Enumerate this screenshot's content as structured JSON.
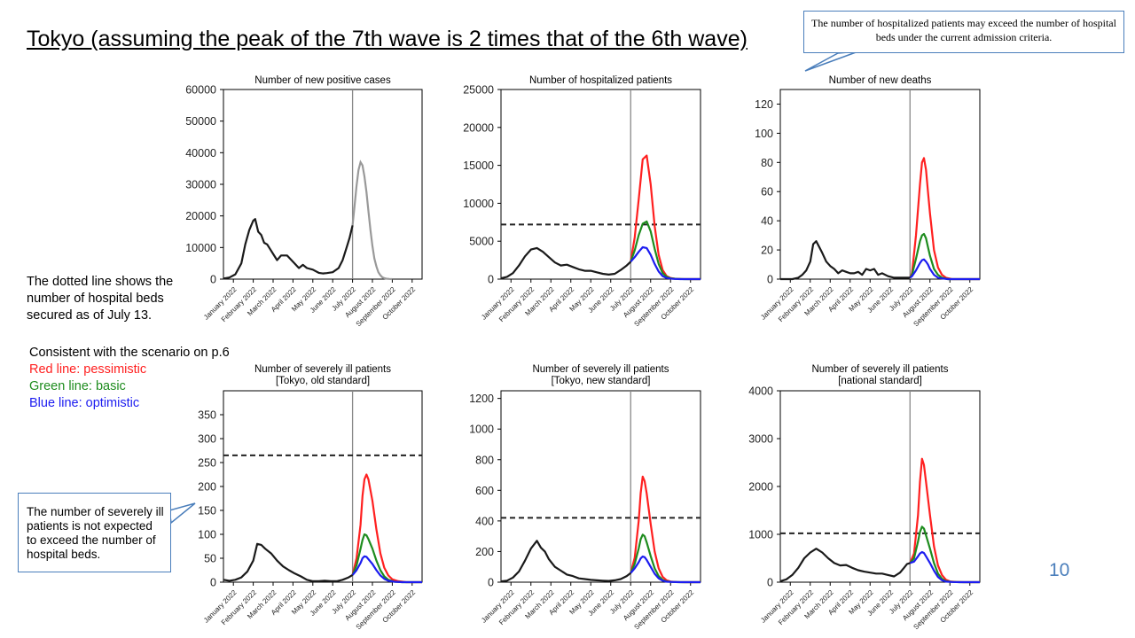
{
  "slide": {
    "title": "Tokyo (assuming the peak of the 7th wave is 2 times that of the 6th wave)",
    "callout_top": "The number of hospitalized patients may exceed the number of hospital beds under the current admission criteria.",
    "dotted_note": "The dotted line shows the number of hospital beds secured as of July 13.",
    "legend": {
      "heading": "Consistent with the scenario on p.6",
      "red": "Red line: pessimistic",
      "green": "Green line: basic",
      "blue": "Blue line: optimistic"
    },
    "callout_left": "The number of severely ill patients is not expected to exceed the number of hospital beds.",
    "page_number": "10"
  },
  "colors": {
    "observed": "#1a1a1a",
    "projection": "#999999",
    "pessimistic": "#ff2020",
    "basic": "#1e8c1e",
    "optimistic": "#1c1cf0",
    "beds": "#222222",
    "divider": "#888888"
  },
  "months": [
    "January 2022",
    "February 2022",
    "March 2022",
    "April 2022",
    "May 2022",
    "June 2022",
    "July 2022",
    "August 2022",
    "September 2022",
    "October 2022"
  ],
  "chart_data": [
    {
      "type": "line",
      "title": "Number of new positive cases",
      "ylim": [
        0,
        60000
      ],
      "yticks": [
        0,
        10000,
        20000,
        30000,
        40000,
        50000,
        60000
      ],
      "xlim": [
        0,
        10
      ],
      "divider_x": 6.5,
      "observed": {
        "x": [
          0,
          0.3,
          0.6,
          0.9,
          1.1,
          1.3,
          1.5,
          1.6,
          1.75,
          1.9,
          2.05,
          2.2,
          2.35,
          2.5,
          2.7,
          2.9,
          3.0,
          3.2,
          3.5,
          3.8,
          4.0,
          4.2,
          4.5,
          4.8,
          5.0,
          5.2,
          5.5,
          5.8,
          6.0,
          6.2,
          6.35,
          6.5
        ],
        "y": [
          200,
          500,
          1500,
          5000,
          11000,
          15500,
          18500,
          19000,
          15000,
          14000,
          11500,
          11000,
          9500,
          8000,
          6000,
          7500,
          7500,
          7500,
          5500,
          3500,
          4500,
          3500,
          3000,
          2000,
          1800,
          1900,
          2200,
          3500,
          6000,
          10000,
          13000,
          17000
        ]
      },
      "projection": {
        "x": [
          6.5,
          6.6,
          6.7,
          6.8,
          6.9,
          7.0,
          7.1,
          7.2,
          7.3,
          7.4,
          7.5,
          7.6,
          7.7,
          7.8,
          7.9,
          8.0,
          8.1,
          8.2,
          8.35,
          8.5
        ],
        "y": [
          17000,
          23000,
          29500,
          34500,
          37000,
          36000,
          32500,
          27500,
          21500,
          15500,
          10500,
          6500,
          4000,
          2200,
          1200,
          600,
          300,
          150,
          50,
          0
        ]
      },
      "series": []
    },
    {
      "type": "line",
      "title": "Number of hospitalized patients",
      "ylim": [
        0,
        25000
      ],
      "yticks": [
        0,
        5000,
        10000,
        15000,
        20000,
        25000
      ],
      "xlim": [
        0,
        10
      ],
      "divider_x": 6.5,
      "beds": 7200,
      "observed": {
        "x": [
          0,
          0.3,
          0.6,
          0.9,
          1.2,
          1.5,
          1.8,
          2.1,
          2.4,
          2.7,
          3.0,
          3.3,
          3.6,
          3.9,
          4.2,
          4.5,
          4.8,
          5.1,
          5.4,
          5.7,
          6.0,
          6.3,
          6.5
        ],
        "y": [
          100,
          300,
          800,
          1800,
          3000,
          3900,
          4100,
          3600,
          2900,
          2200,
          1800,
          1900,
          1600,
          1300,
          1100,
          1100,
          900,
          700,
          600,
          700,
          1200,
          1800,
          2300
        ]
      },
      "series": [
        {
          "name": "pessimistic",
          "x": [
            6.5,
            6.7,
            6.9,
            7.1,
            7.3,
            7.5,
            7.7,
            7.9,
            8.1,
            8.3,
            8.5,
            8.7,
            9.0,
            9.5,
            10.0
          ],
          "y": [
            2300,
            5500,
            10500,
            15800,
            16300,
            12500,
            7000,
            3200,
            1200,
            400,
            150,
            60,
            20,
            0,
            0
          ]
        },
        {
          "name": "basic",
          "x": [
            6.5,
            6.7,
            6.9,
            7.1,
            7.3,
            7.5,
            7.7,
            7.9,
            8.1,
            8.3,
            8.5,
            8.8,
            9.2,
            10.0
          ],
          "y": [
            2300,
            3800,
            5800,
            7300,
            7600,
            6300,
            4000,
            2000,
            800,
            300,
            100,
            30,
            0,
            0
          ]
        },
        {
          "name": "optimistic",
          "x": [
            6.5,
            6.7,
            6.9,
            7.1,
            7.3,
            7.5,
            7.7,
            7.9,
            8.1,
            8.3,
            8.6,
            9.0,
            10.0
          ],
          "y": [
            2300,
            2900,
            3600,
            4200,
            4100,
            3200,
            2000,
            1000,
            400,
            150,
            40,
            0,
            0
          ]
        }
      ]
    },
    {
      "type": "line",
      "title": "Number of new deaths",
      "ylim": [
        0,
        130
      ],
      "yticks": [
        0,
        20,
        40,
        60,
        80,
        100,
        120
      ],
      "xlim": [
        0,
        10
      ],
      "divider_x": 6.5,
      "observed": {
        "x": [
          0,
          0.3,
          0.6,
          0.9,
          1.1,
          1.3,
          1.5,
          1.65,
          1.8,
          1.95,
          2.1,
          2.3,
          2.5,
          2.7,
          2.9,
          3.1,
          3.3,
          3.5,
          3.7,
          3.9,
          4.1,
          4.3,
          4.5,
          4.7,
          4.9,
          5.1,
          5.4,
          5.7,
          6.0,
          6.3,
          6.5
        ],
        "y": [
          0,
          0,
          0,
          1,
          3,
          6,
          12,
          24,
          26,
          22,
          18,
          12,
          9,
          7,
          4,
          6,
          5,
          4,
          4,
          5,
          3,
          7,
          6,
          7,
          3,
          4,
          2,
          1,
          1,
          1,
          1
        ]
      },
      "series": [
        {
          "name": "pessimistic",
          "x": [
            6.5,
            6.6,
            6.8,
            7.0,
            7.1,
            7.2,
            7.3,
            7.4,
            7.5,
            7.7,
            7.9,
            8.1,
            8.3,
            8.6,
            9.0,
            10.0
          ],
          "y": [
            1,
            4,
            30,
            65,
            80,
            83,
            75,
            60,
            45,
            20,
            8,
            3,
            1,
            0,
            0,
            0
          ]
        },
        {
          "name": "basic",
          "x": [
            6.5,
            6.6,
            6.8,
            7.0,
            7.1,
            7.2,
            7.3,
            7.4,
            7.5,
            7.7,
            7.9,
            8.1,
            8.4,
            9.0,
            10.0
          ],
          "y": [
            1,
            3,
            14,
            26,
            30,
            31,
            28,
            22,
            16,
            7,
            3,
            1,
            0,
            0,
            0
          ]
        },
        {
          "name": "optimistic",
          "x": [
            6.5,
            6.6,
            6.8,
            7.0,
            7.1,
            7.2,
            7.3,
            7.4,
            7.5,
            7.7,
            7.9,
            8.1,
            8.4,
            9.0,
            10.0
          ],
          "y": [
            1,
            2,
            6,
            11,
            13,
            13.5,
            12,
            10,
            7,
            3,
            1,
            0.5,
            0,
            0,
            0
          ]
        }
      ]
    },
    {
      "type": "line",
      "title": "Number of severely ill patients",
      "subtitle": "[Tokyo,  old standard]",
      "ylim": [
        0,
        400
      ],
      "yticks": [
        0,
        50,
        100,
        150,
        200,
        250,
        300,
        350
      ],
      "xlim": [
        0,
        10
      ],
      "divider_x": 6.5,
      "beds": 265,
      "observed": {
        "x": [
          0,
          0.3,
          0.6,
          0.9,
          1.2,
          1.5,
          1.7,
          1.9,
          2.1,
          2.4,
          2.7,
          3.0,
          3.3,
          3.6,
          3.9,
          4.2,
          4.5,
          4.8,
          5.1,
          5.4,
          5.7,
          6.0,
          6.3,
          6.5
        ],
        "y": [
          5,
          3,
          5,
          10,
          22,
          45,
          80,
          78,
          70,
          60,
          45,
          33,
          25,
          18,
          12,
          5,
          2,
          2,
          3,
          2,
          2,
          5,
          10,
          15
        ]
      },
      "series": [
        {
          "name": "pessimistic",
          "x": [
            6.5,
            6.7,
            6.9,
            7.0,
            7.1,
            7.2,
            7.3,
            7.5,
            7.7,
            7.9,
            8.1,
            8.3,
            8.5,
            8.8,
            9.2,
            10.0
          ],
          "y": [
            15,
            50,
            120,
            180,
            215,
            225,
            215,
            170,
            110,
            60,
            30,
            14,
            6,
            2,
            0,
            0
          ]
        },
        {
          "name": "basic",
          "x": [
            6.5,
            6.7,
            6.9,
            7.0,
            7.1,
            7.2,
            7.3,
            7.5,
            7.7,
            7.9,
            8.1,
            8.3,
            8.6,
            9.0,
            10.0
          ],
          "y": [
            15,
            35,
            70,
            88,
            100,
            98,
            90,
            70,
            45,
            25,
            12,
            5,
            1,
            0,
            0
          ]
        },
        {
          "name": "optimistic",
          "x": [
            6.5,
            6.7,
            6.9,
            7.0,
            7.1,
            7.2,
            7.3,
            7.5,
            7.7,
            7.9,
            8.1,
            8.3,
            8.6,
            9.0,
            10.0
          ],
          "y": [
            15,
            25,
            40,
            50,
            54,
            53,
            48,
            38,
            25,
            14,
            7,
            3,
            1,
            0,
            0
          ]
        }
      ]
    },
    {
      "type": "line",
      "title": "Number of severely ill patients",
      "subtitle": "[Tokyo,  new standard]",
      "ylim": [
        0,
        1250
      ],
      "yticks": [
        0,
        200,
        400,
        600,
        800,
        1000,
        1200
      ],
      "xlim": [
        0,
        10
      ],
      "divider_x": 6.5,
      "beds": 420,
      "observed": {
        "x": [
          0,
          0.3,
          0.6,
          0.9,
          1.2,
          1.5,
          1.8,
          2.0,
          2.2,
          2.4,
          2.7,
          3.0,
          3.3,
          3.6,
          3.9,
          4.2,
          4.5,
          4.8,
          5.1,
          5.4,
          5.7,
          6.0,
          6.3,
          6.5
        ],
        "y": [
          5,
          10,
          30,
          70,
          140,
          220,
          270,
          225,
          200,
          150,
          100,
          75,
          50,
          40,
          25,
          20,
          15,
          12,
          10,
          8,
          12,
          20,
          40,
          60
        ]
      },
      "series": [
        {
          "name": "pessimistic",
          "x": [
            6.5,
            6.7,
            6.9,
            7.0,
            7.1,
            7.2,
            7.3,
            7.5,
            7.7,
            7.9,
            8.1,
            8.3,
            8.5,
            8.8,
            9.2,
            10.0
          ],
          "y": [
            60,
            160,
            400,
            580,
            690,
            660,
            580,
            380,
            200,
            90,
            35,
            12,
            4,
            1,
            0,
            0
          ]
        },
        {
          "name": "basic",
          "x": [
            6.5,
            6.7,
            6.9,
            7.0,
            7.1,
            7.2,
            7.3,
            7.5,
            7.7,
            7.9,
            8.1,
            8.3,
            8.6,
            9.0,
            10.0
          ],
          "y": [
            60,
            120,
            220,
            280,
            310,
            300,
            260,
            170,
            90,
            40,
            15,
            5,
            1,
            0,
            0
          ]
        },
        {
          "name": "optimistic",
          "x": [
            6.5,
            6.7,
            6.9,
            7.0,
            7.1,
            7.2,
            7.3,
            7.5,
            7.7,
            7.9,
            8.1,
            8.3,
            8.6,
            9.0,
            10.0
          ],
          "y": [
            60,
            90,
            130,
            155,
            168,
            163,
            145,
            100,
            55,
            25,
            10,
            3,
            1,
            0,
            0
          ]
        }
      ]
    },
    {
      "type": "line",
      "title": "Number of severely ill patients",
      "subtitle": "[national standard]",
      "ylim": [
        0,
        4000
      ],
      "yticks": [
        0,
        1000,
        2000,
        3000,
        4000
      ],
      "xlim": [
        0,
        10
      ],
      "divider_x": 6.5,
      "beds": 1020,
      "observed": {
        "x": [
          0,
          0.3,
          0.6,
          0.9,
          1.2,
          1.5,
          1.8,
          2.1,
          2.4,
          2.7,
          3.0,
          3.3,
          3.6,
          3.9,
          4.2,
          4.5,
          4.8,
          5.1,
          5.4,
          5.7,
          6.0,
          6.2,
          6.35,
          6.5
        ],
        "y": [
          20,
          60,
          150,
          300,
          500,
          620,
          700,
          620,
          500,
          400,
          350,
          360,
          300,
          250,
          220,
          200,
          180,
          180,
          150,
          120,
          200,
          300,
          380,
          400
        ]
      },
      "series": [
        {
          "name": "pessimistic",
          "x": [
            6.5,
            6.7,
            6.9,
            7.0,
            7.1,
            7.2,
            7.3,
            7.5,
            7.7,
            7.9,
            8.1,
            8.3,
            8.5,
            8.8,
            9.2,
            10.0
          ],
          "y": [
            400,
            600,
            1400,
            2100,
            2580,
            2450,
            2100,
            1400,
            750,
            350,
            150,
            50,
            15,
            5,
            0,
            0
          ]
        },
        {
          "name": "basic",
          "x": [
            6.5,
            6.7,
            6.9,
            7.0,
            7.1,
            7.2,
            7.3,
            7.5,
            7.7,
            7.9,
            8.1,
            8.3,
            8.6,
            9.0,
            10.0
          ],
          "y": [
            400,
            500,
            850,
            1050,
            1160,
            1120,
            980,
            700,
            400,
            180,
            70,
            20,
            5,
            0,
            0
          ]
        },
        {
          "name": "optimistic",
          "x": [
            6.5,
            6.7,
            6.9,
            7.0,
            7.1,
            7.2,
            7.3,
            7.5,
            7.7,
            7.9,
            8.1,
            8.3,
            8.6,
            9.0,
            10.0
          ],
          "y": [
            400,
            430,
            540,
            600,
            630,
            610,
            540,
            400,
            240,
            110,
            40,
            12,
            3,
            0,
            0
          ]
        }
      ]
    }
  ]
}
